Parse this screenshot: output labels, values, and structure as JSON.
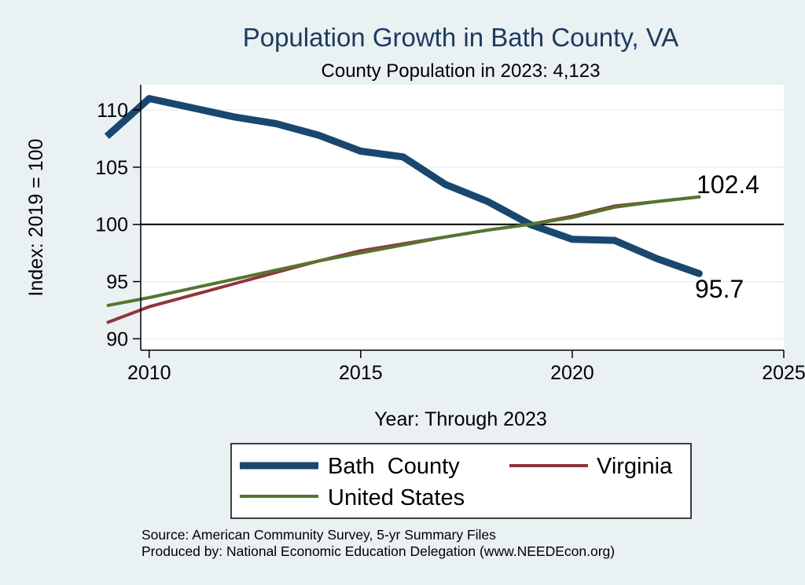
{
  "chart_data": {
    "type": "line",
    "title": "Population Growth in Bath County, VA",
    "subtitle": "County Population in 2023: 4,123",
    "xlabel": "Year: Through 2023",
    "ylabel": "Index: 2019 = 100",
    "xlim": [
      2009,
      2025
    ],
    "ylim": [
      89,
      112
    ],
    "xticks": [
      "2010",
      "2015",
      "2020",
      "2025"
    ],
    "yticks": [
      "90",
      "95",
      "100",
      "105",
      "110"
    ],
    "reference_line": 100,
    "grid": true,
    "legend_position": "bottom",
    "x": [
      2009,
      2010,
      2011,
      2012,
      2013,
      2014,
      2015,
      2016,
      2017,
      2018,
      2019,
      2020,
      2021,
      2022,
      2023
    ],
    "series": [
      {
        "name": "Bath  County",
        "color": "#1a476f",
        "width": 9,
        "values": [
          107.7,
          111.0,
          110.2,
          109.4,
          108.8,
          107.8,
          106.4,
          105.9,
          103.5,
          102.0,
          100.0,
          98.7,
          98.6,
          97.0,
          95.7
        ]
      },
      {
        "name": "Virginia",
        "color": "#90353b",
        "width": 4,
        "values": [
          91.4,
          92.8,
          93.8,
          94.8,
          95.8,
          96.8,
          97.7,
          98.3,
          98.9,
          99.5,
          100.0,
          100.7,
          101.6,
          102.0,
          102.4
        ]
      },
      {
        "name": "United States",
        "color": "#55752f",
        "width": 4,
        "values": [
          92.9,
          93.6,
          94.4,
          95.2,
          96.0,
          96.8,
          97.5,
          98.2,
          98.9,
          99.5,
          100.0,
          100.6,
          101.5,
          102.0,
          102.4
        ]
      }
    ],
    "end_labels": [
      "102.4",
      "95.7"
    ]
  },
  "notes": {
    "source": "Source: American Community Survey, 5-yr Summary Files",
    "produced": "Produced by: National Economic Education Delegation (www.NEEDEcon.org)"
  }
}
